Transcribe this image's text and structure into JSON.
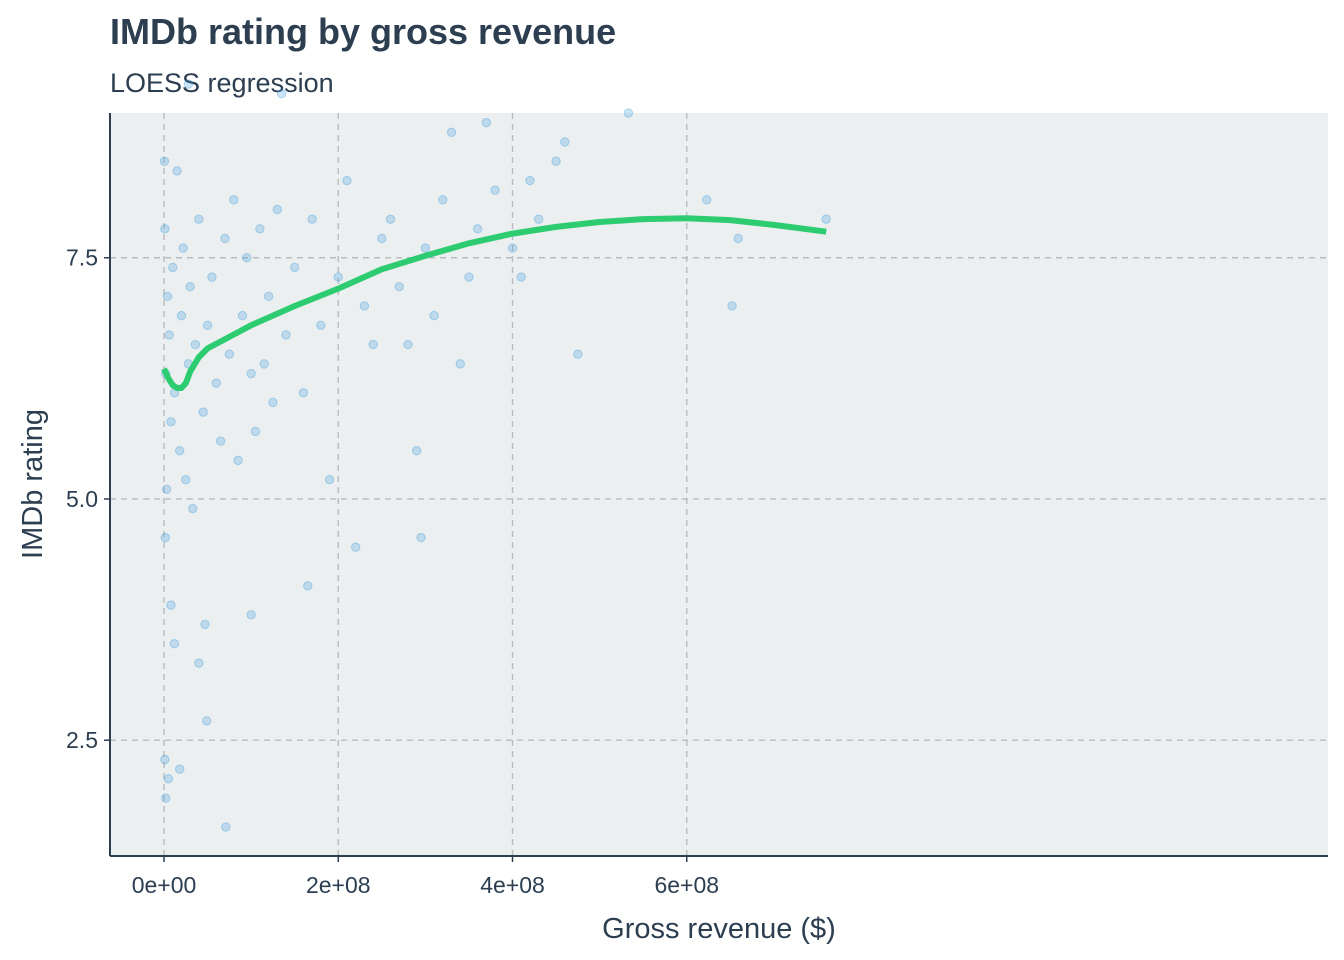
{
  "chart_data": {
    "type": "scatter",
    "title": "IMDb rating by gross revenue",
    "subtitle": "LOESS regression",
    "xlabel": "Gross revenue ($)",
    "ylabel": "IMDb rating",
    "xlim": [
      -62000000,
      1336000000
    ],
    "ylim": [
      1.3,
      9.0
    ],
    "x_ticks": [
      {
        "value": 0,
        "label": "0e+00"
      },
      {
        "value": 200000000,
        "label": "2e+08"
      },
      {
        "value": 400000000,
        "label": "4e+08"
      },
      {
        "value": 600000000,
        "label": "6e+08"
      }
    ],
    "y_ticks": [
      {
        "value": 2.5,
        "label": "2.5"
      },
      {
        "value": 5.0,
        "label": "5.0"
      },
      {
        "value": 7.5,
        "label": "7.5"
      }
    ],
    "grid": true,
    "colors": {
      "points": "#3498db",
      "loess": "#2ecc71",
      "panel_background": "#ebeff0",
      "grid": "#b8bcbf",
      "text": "#2c3e50",
      "axis_line": "#2c3e50"
    },
    "points": [
      [
        1000000,
        7.8
      ],
      [
        2000000,
        6.3
      ],
      [
        3000000,
        5.1
      ],
      [
        500000,
        8.5
      ],
      [
        1500000,
        4.6
      ],
      [
        4000000,
        7.1
      ],
      [
        6000000,
        6.7
      ],
      [
        8000000,
        5.8
      ],
      [
        10000000,
        7.4
      ],
      [
        12000000,
        6.1
      ],
      [
        15000000,
        8.4
      ],
      [
        18000000,
        5.5
      ],
      [
        20000000,
        6.9
      ],
      [
        22000000,
        7.6
      ],
      [
        25000000,
        5.2
      ],
      [
        28000000,
        6.4
      ],
      [
        30000000,
        7.2
      ],
      [
        33000000,
        4.9
      ],
      [
        36000000,
        6.6
      ],
      [
        40000000,
        7.9
      ],
      [
        45000000,
        5.9
      ],
      [
        50000000,
        6.8
      ],
      [
        55000000,
        7.3
      ],
      [
        60000000,
        6.2
      ],
      [
        65000000,
        5.6
      ],
      [
        70000000,
        7.7
      ],
      [
        75000000,
        6.5
      ],
      [
        80000000,
        8.1
      ],
      [
        85000000,
        5.4
      ],
      [
        90000000,
        6.9
      ],
      [
        95000000,
        7.5
      ],
      [
        100000000,
        6.3
      ],
      [
        105000000,
        5.7
      ],
      [
        110000000,
        7.8
      ],
      [
        115000000,
        6.4
      ],
      [
        120000000,
        7.1
      ],
      [
        125000000,
        6.0
      ],
      [
        130000000,
        8.0
      ],
      [
        140000000,
        6.7
      ],
      [
        150000000,
        7.4
      ],
      [
        160000000,
        6.1
      ],
      [
        170000000,
        7.9
      ],
      [
        180000000,
        6.8
      ],
      [
        190000000,
        5.2
      ],
      [
        200000000,
        7.3
      ],
      [
        210000000,
        8.3
      ],
      [
        220000000,
        4.5
      ],
      [
        230000000,
        7.0
      ],
      [
        240000000,
        6.6
      ],
      [
        250000000,
        7.7
      ],
      [
        260000000,
        7.9
      ],
      [
        270000000,
        7.2
      ],
      [
        280000000,
        6.6
      ],
      [
        290000000,
        5.5
      ],
      [
        295000000,
        4.6
      ],
      [
        300000000,
        7.6
      ],
      [
        310000000,
        6.9
      ],
      [
        320000000,
        8.1
      ],
      [
        330000000,
        8.8
      ],
      [
        340000000,
        6.4
      ],
      [
        350000000,
        7.3
      ],
      [
        360000000,
        7.8
      ],
      [
        370000000,
        8.9
      ],
      [
        380000000,
        8.2
      ],
      [
        400000000,
        7.6
      ],
      [
        410000000,
        7.3
      ],
      [
        420000000,
        8.3
      ],
      [
        430000000,
        7.9
      ],
      [
        450000000,
        8.5
      ],
      [
        460000000,
        8.7
      ],
      [
        475000000,
        6.5
      ],
      [
        533000000,
        9.0
      ],
      [
        623000000,
        8.1
      ],
      [
        652000000,
        7.0
      ],
      [
        659000000,
        7.7
      ],
      [
        760000000,
        7.9
      ],
      [
        2000000,
        1.9
      ],
      [
        18000000,
        2.2
      ],
      [
        71000000,
        1.6
      ],
      [
        49000000,
        2.7
      ],
      [
        28000000,
        9.3
      ],
      [
        135000000,
        9.2
      ],
      [
        1000000,
        2.3
      ],
      [
        5000000,
        2.1
      ],
      [
        8000000,
        3.9
      ],
      [
        12000000,
        3.5
      ],
      [
        40000000,
        3.3
      ],
      [
        47000000,
        3.7
      ],
      [
        100000000,
        3.8
      ],
      [
        165000000,
        4.1
      ]
    ],
    "loess": [
      [
        0,
        6.35
      ],
      [
        5000000,
        6.25
      ],
      [
        10000000,
        6.18
      ],
      [
        15000000,
        6.15
      ],
      [
        20000000,
        6.15
      ],
      [
        25000000,
        6.2
      ],
      [
        30000000,
        6.32
      ],
      [
        40000000,
        6.47
      ],
      [
        50000000,
        6.56
      ],
      [
        75000000,
        6.68
      ],
      [
        100000000,
        6.8
      ],
      [
        150000000,
        7.0
      ],
      [
        200000000,
        7.18
      ],
      [
        250000000,
        7.38
      ],
      [
        300000000,
        7.52
      ],
      [
        350000000,
        7.65
      ],
      [
        400000000,
        7.75
      ],
      [
        450000000,
        7.82
      ],
      [
        500000000,
        7.87
      ],
      [
        550000000,
        7.9
      ],
      [
        600000000,
        7.91
      ],
      [
        650000000,
        7.89
      ],
      [
        700000000,
        7.84
      ],
      [
        760000000,
        7.77
      ]
    ]
  }
}
